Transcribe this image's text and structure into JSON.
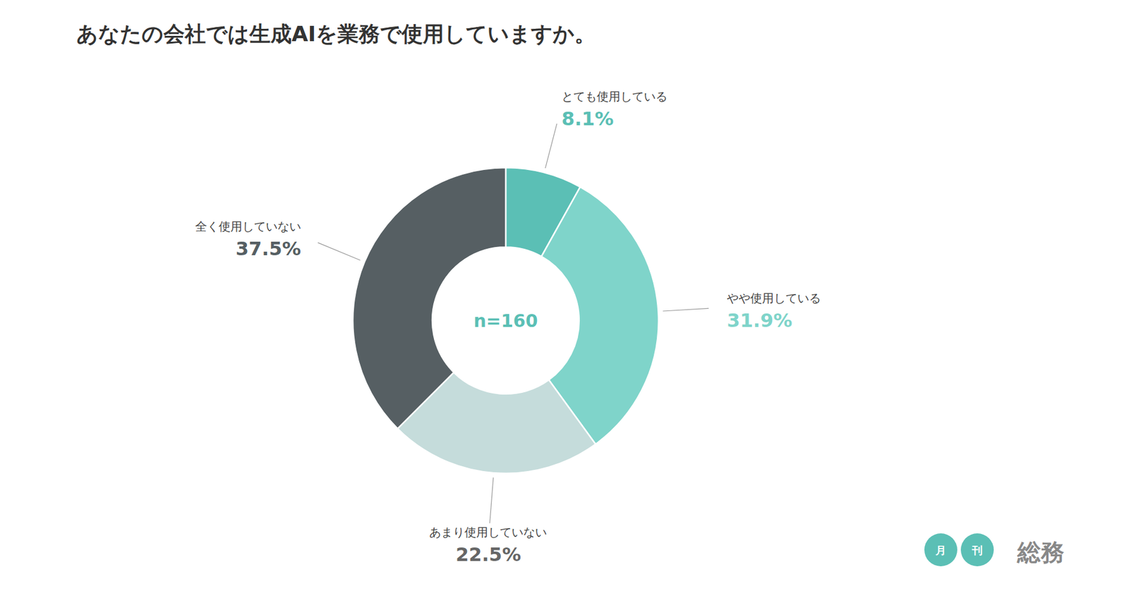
{
  "chart_data": {
    "type": "donut",
    "title": "あなたの会社では生成AIを業務で使用していますか。",
    "categories": [
      "とても使用している",
      "やや使用している",
      "あまり使用していない",
      "全く使用していない"
    ],
    "values": [
      8.1,
      31.9,
      22.5,
      37.5
    ],
    "value_labels": [
      "8.1%",
      "31.9%",
      "22.5%",
      "37.5%"
    ],
    "colors": [
      "#5bbfb5",
      "#7fd4ca",
      "#c5dcdb",
      "#565f63"
    ],
    "data_labels": true,
    "annotations": [
      "n=160",
      "月",
      "刊",
      "総務"
    ]
  }
}
